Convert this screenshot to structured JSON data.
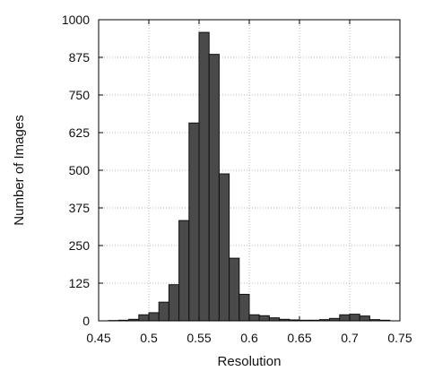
{
  "chart_data": {
    "type": "bar",
    "title": "",
    "xlabel": "Resolution",
    "ylabel": "Number of Images",
    "xlim": [
      0.45,
      0.75
    ],
    "ylim": [
      0,
      1000
    ],
    "xticks": [
      0.45,
      0.5,
      0.55,
      0.6,
      0.65,
      0.7,
      0.75
    ],
    "xtick_labels": [
      "0.45",
      "0.5",
      "0.55",
      "0.6",
      "0.65",
      "0.7",
      "0.75"
    ],
    "yticks": [
      0,
      125,
      250,
      375,
      500,
      625,
      750,
      875,
      1000
    ],
    "ytick_labels": [
      "0",
      "125",
      "250",
      "375",
      "500",
      "625",
      "750",
      "875",
      "1000"
    ],
    "grid": true,
    "bin_width": 0.01,
    "bin_starts": [
      0.46,
      0.47,
      0.48,
      0.49,
      0.5,
      0.51,
      0.52,
      0.53,
      0.54,
      0.55,
      0.56,
      0.57,
      0.58,
      0.59,
      0.6,
      0.61,
      0.62,
      0.63,
      0.64,
      0.65,
      0.66,
      0.67,
      0.68,
      0.69,
      0.7,
      0.71,
      0.72,
      0.73
    ],
    "values": [
      1,
      2,
      5,
      20,
      27,
      62,
      120,
      333,
      657,
      958,
      885,
      488,
      208,
      88,
      20,
      17,
      10,
      5,
      3,
      2,
      2,
      4,
      8,
      20,
      22,
      16,
      4,
      2
    ],
    "colors": {
      "bar_fill": "#4a4a4a",
      "bar_stroke": "#111111",
      "grid": "#b8b8b8",
      "axis": "#000000"
    }
  }
}
